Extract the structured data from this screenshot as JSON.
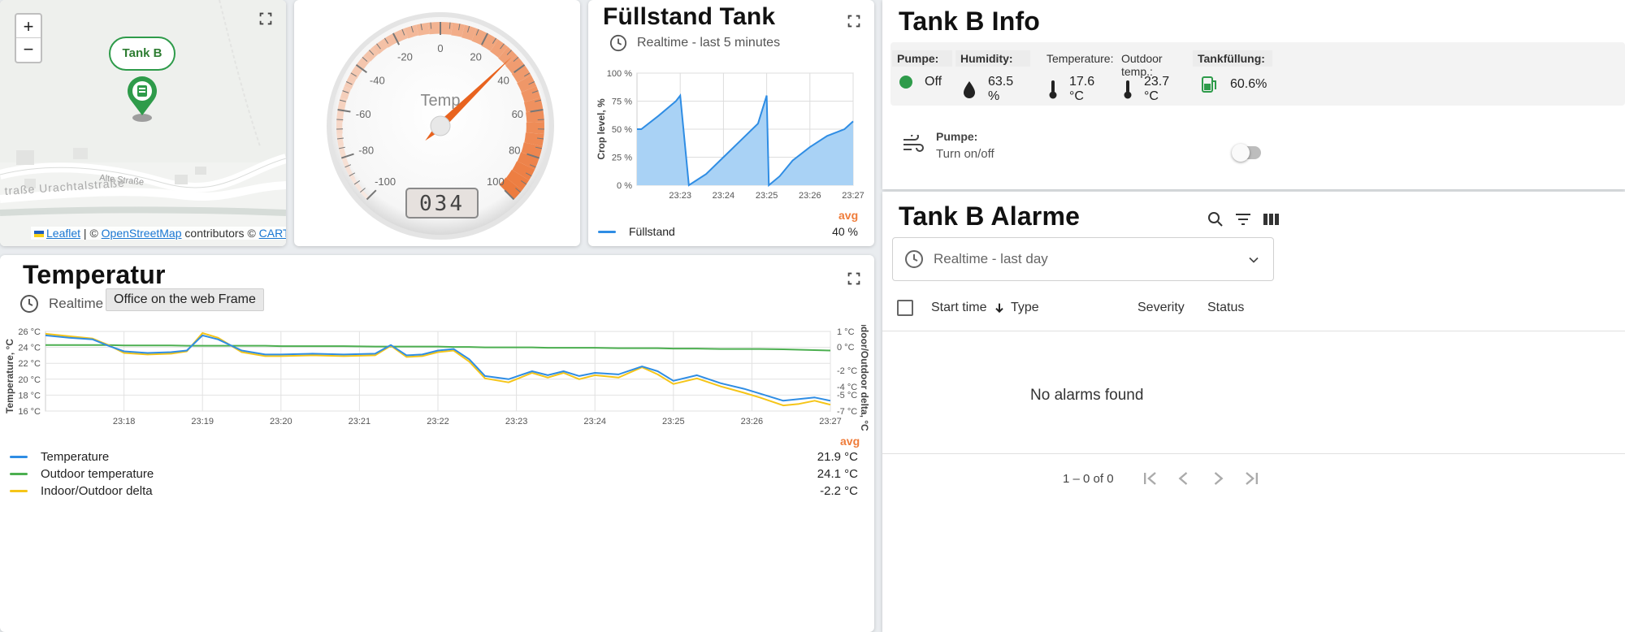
{
  "map": {
    "zoom_in": "+",
    "zoom_out": "−",
    "marker_label": "Tank B",
    "street1": "Alte Straße",
    "street2": "traße Urachtalstraße",
    "attribution": {
      "leaflet": "Leaflet",
      "sep1": " | © ",
      "osm": "OpenStreetMap",
      "contrib": " contributors © ",
      "carto": "CARTO"
    }
  },
  "gauge": {
    "label": "Temp",
    "value": 34,
    "display": "034",
    "min": -100,
    "max": 100,
    "ticks": [
      "-100",
      "-80",
      "-60",
      "-40",
      "-20",
      "0",
      "20",
      "40",
      "60",
      "80",
      "100"
    ]
  },
  "fuell": {
    "title": "Füllstand Tank",
    "timewindow": "Realtime - last 5 minutes",
    "ylabel": "Crop level, %",
    "avg": "avg",
    "legend": [
      {
        "name": "Füllstand",
        "value": "40 %",
        "color": "#2f8de4"
      }
    ]
  },
  "info": {
    "title": "Tank B Info",
    "cols": [
      {
        "head": "Pumpe:",
        "value": "Off",
        "icon": "status-dot-icon"
      },
      {
        "head": "Humidity:",
        "value": "63.5 %",
        "icon": "water-drop-icon"
      },
      {
        "head": "Temperature:",
        "value": "17.6 °C",
        "icon": "thermometer-icon"
      },
      {
        "head": "Outdoor temp.:",
        "value": "23.7 °C",
        "icon": "thermometer-icon"
      },
      {
        "head": "Tankfüllung:",
        "value": "60.6%",
        "icon": "tank-icon"
      }
    ],
    "pump_title": "Pumpe:",
    "pump_sub": "Turn on/off"
  },
  "alarms": {
    "title": "Tank B Alarme",
    "timewindow": "Realtime - last day",
    "columns": [
      "Start time",
      "Type",
      "Severity",
      "Status"
    ],
    "empty": "No alarms found",
    "paging": "1 – 0 of 0"
  },
  "temp": {
    "title": "Temperatur",
    "timewindow": "Realtime - la",
    "tooltip": "Office on the web Frame",
    "ylabel_left": "Temperature, °C",
    "ylabel_right": "Indoor/Outdoor delta, °C",
    "avg": "avg",
    "legend": [
      {
        "name": "Temperature",
        "value": "21.9 °C",
        "color": "#2f8de4"
      },
      {
        "name": "Outdoor temperature",
        "value": "24.1 °C",
        "color": "#4caf50"
      },
      {
        "name": "Indoor/Outdoor delta",
        "value": "-2.2 °C",
        "color": "#f5c518"
      }
    ]
  },
  "chart_data": [
    {
      "type": "area",
      "title": "",
      "ylabel": "Crop level, %",
      "xlabel": "",
      "x": [
        "23:22.1",
        "23:22.5",
        "23:22.9",
        "23:23",
        "23:23.2",
        "23:23.6",
        "23:24",
        "23:24.4",
        "23:24.8",
        "23:25",
        "23:25.05",
        "23:25.3",
        "23:25.6",
        "23:26",
        "23:26.4",
        "23:26.8",
        "23:27"
      ],
      "values": [
        50,
        62,
        75,
        80,
        0,
        10,
        25,
        40,
        55,
        80,
        0,
        8,
        22,
        34,
        44,
        50,
        57
      ],
      "series": [
        {
          "name": "Füllstand",
          "values": [
            50,
            62,
            75,
            80,
            0,
            10,
            25,
            40,
            55,
            80,
            0,
            8,
            22,
            34,
            44,
            50,
            57
          ]
        }
      ],
      "xticks": [
        "23:23",
        "23:24",
        "23:25",
        "23:26",
        "23:27"
      ],
      "yticks": [
        "0 %",
        "25 %",
        "50 %",
        "75 %",
        "100 %"
      ],
      "ylim": [
        0,
        100
      ],
      "grid": true
    },
    {
      "type": "line",
      "title": "",
      "ylabel": "Temperature, °C",
      "ylabel_right": "Indoor/Outdoor delta, °C",
      "xticks": [
        "23:18",
        "23:19",
        "23:20",
        "23:21",
        "23:22",
        "23:23",
        "23:24",
        "23:25",
        "23:26",
        "23:27"
      ],
      "yticks_left": [
        "16 °C",
        "18 °C",
        "20 °C",
        "22 °C",
        "24 °C",
        "26 °C"
      ],
      "yticks_right": [
        "-7 °C",
        "-5 °C",
        "-4 °C",
        "-2 °C",
        "0 °C",
        "1 °C"
      ],
      "ylim": [
        16,
        26
      ],
      "x_minutes": [
        17.0,
        17.3,
        17.6,
        17.8,
        18.0,
        18.3,
        18.6,
        18.8,
        19.0,
        19.2,
        19.5,
        19.8,
        20.0,
        20.4,
        20.8,
        21.2,
        21.4,
        21.6,
        21.8,
        22.0,
        22.2,
        22.4,
        22.6,
        22.9,
        23.2,
        23.4,
        23.6,
        23.8,
        24.0,
        24.3,
        24.6,
        24.8,
        25.0,
        25.3,
        25.6,
        25.9,
        26.1,
        26.4,
        26.6,
        26.8,
        27.0
      ],
      "series": [
        {
          "name": "Temperature",
          "values": [
            25.5,
            25.2,
            25.0,
            24.2,
            23.5,
            23.3,
            23.4,
            23.6,
            25.5,
            25.0,
            23.6,
            23.1,
            23.1,
            23.2,
            23.1,
            23.2,
            24.3,
            23.0,
            23.1,
            23.6,
            23.8,
            22.5,
            20.4,
            20.0,
            21.0,
            20.5,
            21.0,
            20.4,
            20.8,
            20.6,
            21.6,
            21.0,
            19.8,
            20.5,
            19.5,
            18.8,
            18.2,
            17.3,
            17.5,
            17.7,
            17.3
          ]
        },
        {
          "name": "Outdoor temperature",
          "values": [
            24.3,
            24.3,
            24.3,
            24.3,
            24.25,
            24.25,
            24.25,
            24.2,
            24.2,
            24.2,
            24.2,
            24.2,
            24.15,
            24.15,
            24.15,
            24.1,
            24.1,
            24.1,
            24.1,
            24.1,
            24.05,
            24.05,
            24.0,
            24.0,
            24.0,
            23.95,
            23.95,
            23.95,
            23.95,
            23.9,
            23.9,
            23.9,
            23.85,
            23.85,
            23.8,
            23.8,
            23.8,
            23.75,
            23.7,
            23.65,
            23.6
          ]
        },
        {
          "name": "Indoor/Outdoor delta",
          "values": [
            25.7,
            25.4,
            25.1,
            24.3,
            23.3,
            23.1,
            23.2,
            23.5,
            25.8,
            25.2,
            23.4,
            22.9,
            22.9,
            23.0,
            22.9,
            23.0,
            24.2,
            22.8,
            22.9,
            23.4,
            23.6,
            22.2,
            20.1,
            19.6,
            20.8,
            20.2,
            20.8,
            20.0,
            20.5,
            20.2,
            21.5,
            20.6,
            19.4,
            20.1,
            19.1,
            18.3,
            17.7,
            16.7,
            16.9,
            17.3,
            16.8
          ]
        }
      ],
      "grid": true
    }
  ]
}
